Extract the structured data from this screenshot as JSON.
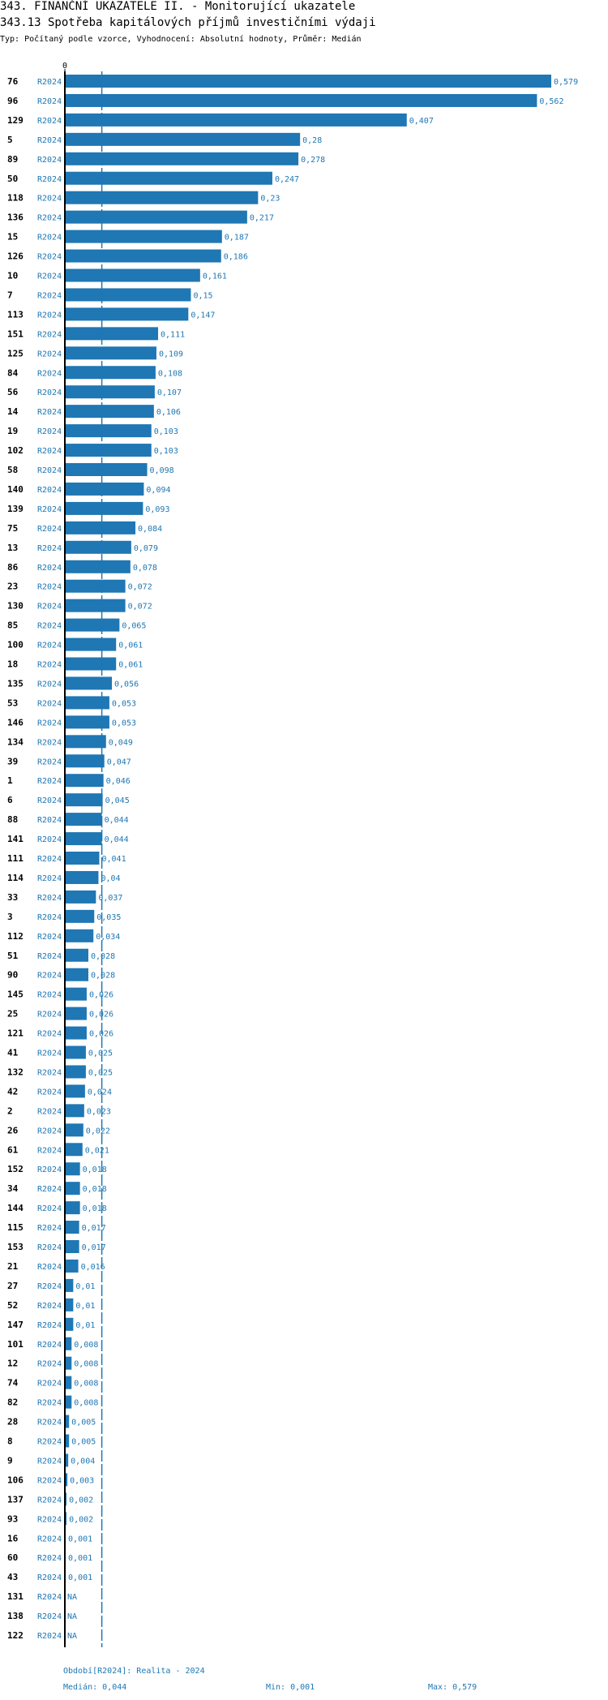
{
  "header": {
    "title": "343. FINANČNÍ UKAZATELE II. - Monitorující ukazatele",
    "subtitle": "343.13 Spotřeba kapitálových příjmů investičními výdaji",
    "type_line": "Typ: Počítaný podle vzorce, Vyhodnocení: Absolutní hodnoty, Průměr: Medián"
  },
  "chart_data": {
    "type": "bar",
    "orientation": "horizontal",
    "x_tick_labels": [
      "0"
    ],
    "period_label": "R2024",
    "xlim": [
      0,
      0.579
    ],
    "median_line": 0.044,
    "bar_color": "#1f77b4",
    "median_color": "#1f77b4",
    "categories": [
      "76",
      "96",
      "129",
      "5",
      "89",
      "50",
      "118",
      "136",
      "15",
      "126",
      "10",
      "7",
      "113",
      "151",
      "125",
      "84",
      "56",
      "14",
      "19",
      "102",
      "58",
      "140",
      "139",
      "75",
      "13",
      "86",
      "23",
      "130",
      "85",
      "100",
      "18",
      "135",
      "53",
      "146",
      "134",
      "39",
      "1",
      "6",
      "88",
      "141",
      "111",
      "114",
      "33",
      "3",
      "112",
      "51",
      "90",
      "145",
      "25",
      "121",
      "41",
      "132",
      "42",
      "2",
      "26",
      "61",
      "152",
      "34",
      "144",
      "115",
      "153",
      "21",
      "27",
      "52",
      "147",
      "101",
      "12",
      "74",
      "82",
      "28",
      "8",
      "9",
      "106",
      "137",
      "93",
      "16",
      "60",
      "43",
      "131",
      "138",
      "122"
    ],
    "values": [
      0.579,
      0.562,
      0.407,
      0.28,
      0.278,
      0.247,
      0.23,
      0.217,
      0.187,
      0.186,
      0.161,
      0.15,
      0.147,
      0.111,
      0.109,
      0.108,
      0.107,
      0.106,
      0.103,
      0.103,
      0.098,
      0.094,
      0.093,
      0.084,
      0.079,
      0.078,
      0.072,
      0.072,
      0.065,
      0.061,
      0.061,
      0.056,
      0.053,
      0.053,
      0.049,
      0.047,
      0.046,
      0.045,
      0.044,
      0.044,
      0.041,
      0.04,
      0.037,
      0.035,
      0.034,
      0.028,
      0.028,
      0.026,
      0.026,
      0.026,
      0.025,
      0.025,
      0.024,
      0.023,
      0.022,
      0.021,
      0.018,
      0.018,
      0.018,
      0.017,
      0.017,
      0.016,
      0.01,
      0.01,
      0.01,
      0.008,
      0.008,
      0.008,
      0.008,
      0.005,
      0.005,
      0.004,
      0.003,
      0.002,
      0.002,
      0.001,
      0.001,
      0.001,
      null,
      null,
      null
    ],
    "value_labels": [
      "0,579",
      "0,562",
      "0,407",
      "0,28",
      "0,278",
      "0,247",
      "0,23",
      "0,217",
      "0,187",
      "0,186",
      "0,161",
      "0,15",
      "0,147",
      "0,111",
      "0,109",
      "0,108",
      "0,107",
      "0,106",
      "0,103",
      "0,103",
      "0,098",
      "0,094",
      "0,093",
      "0,084",
      "0,079",
      "0,078",
      "0,072",
      "0,072",
      "0,065",
      "0,061",
      "0,061",
      "0,056",
      "0,053",
      "0,053",
      "0,049",
      "0,047",
      "0,046",
      "0,045",
      "0,044",
      "0,044",
      "0,041",
      "0,04",
      "0,037",
      "0,035",
      "0,034",
      "0,028",
      "0,028",
      "0,026",
      "0,026",
      "0,026",
      "0,025",
      "0,025",
      "0,024",
      "0,023",
      "0,022",
      "0,021",
      "0,018",
      "0,018",
      "0,018",
      "0,017",
      "0,017",
      "0,016",
      "0,01",
      "0,01",
      "0,01",
      "0,008",
      "0,008",
      "0,008",
      "0,008",
      "0,005",
      "0,005",
      "0,004",
      "0,003",
      "0,002",
      "0,002",
      "0,001",
      "0,001",
      "0,001",
      "NA",
      "NA",
      "NA"
    ]
  },
  "footer": {
    "period": "Období[R2024]: Realita - 2024",
    "median": "Medián: 0,044",
    "min": "Min: 0,001",
    "max": "Max: 0,579"
  }
}
